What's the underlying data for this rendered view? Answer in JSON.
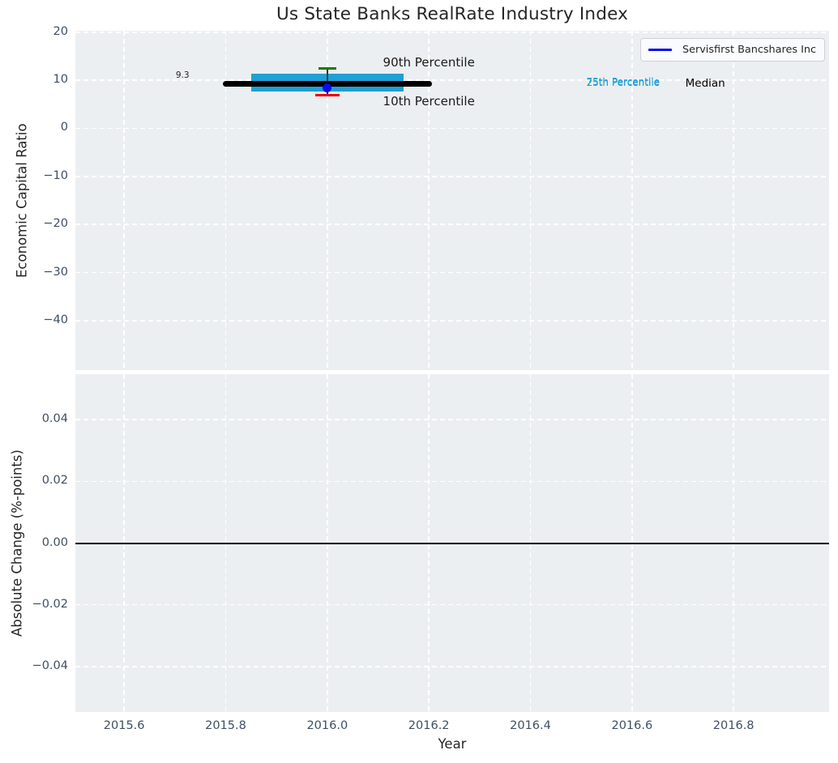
{
  "figure": {
    "title": "Us State Banks RealRate Industry Index",
    "xlabel": "Year",
    "legend": {
      "label": "Servisfirst Bancshares Inc",
      "line_color": "#0b0bf0"
    }
  },
  "colors": {
    "plot_background": "#eceff2",
    "grid": "#ffffff",
    "tick_label": "#3e4f63",
    "median_line": "#000000",
    "iqr_band": "#1fa0d6",
    "p90_cap": "#008000",
    "p10_cap": "#ee0000",
    "whisker": "#333333",
    "company_point": "#0b0bf0",
    "zero_line": "#000000"
  },
  "chart_data": [
    {
      "type": "line",
      "title": "Us State Banks RealRate Industry Index",
      "xlabel": "Year",
      "ylabel": "Economic Capital Ratio",
      "xlim": [
        2015.504,
        2016.988
      ],
      "ylim": [
        -50.3,
        20.3
      ],
      "grid": true,
      "xticks": [
        {
          "v": 2015.6,
          "label": "2015.6"
        },
        {
          "v": 2015.8,
          "label": "2015.8"
        },
        {
          "v": 2016.0,
          "label": "2016.0"
        },
        {
          "v": 2016.2,
          "label": "2016.2"
        },
        {
          "v": 2016.4,
          "label": "2016.4"
        },
        {
          "v": 2016.6,
          "label": "2016.6"
        },
        {
          "v": 2016.8,
          "label": "2016.8"
        }
      ],
      "yticks": [
        {
          "v": 20,
          "label": "20"
        },
        {
          "v": 10,
          "label": "10"
        },
        {
          "v": 0,
          "label": "0"
        },
        {
          "v": -10,
          "label": "−10"
        },
        {
          "v": -20,
          "label": "−20"
        },
        {
          "v": -30,
          "label": "−30"
        },
        {
          "v": -40,
          "label": "−40"
        }
      ],
      "series": [
        {
          "name": "Median",
          "color": "#000000",
          "x": [
            2015.8,
            2016.2
          ],
          "values": [
            9.3,
            9.3
          ],
          "value_label": "9.3"
        },
        {
          "name": "25th-75th Percentile band",
          "color": "#1fa0d6",
          "x": [
            2015.85,
            2016.15
          ],
          "p25": 7.7,
          "p75": 11.4
        },
        {
          "name": "Servisfirst Bancshares Inc",
          "color": "#0b0bf0",
          "x": [
            2016.0
          ],
          "values": [
            8.4
          ],
          "p90": 12.5,
          "p10": 6.9,
          "p90_cap_color": "#008000",
          "p10_cap_color": "#ee0000"
        }
      ],
      "annotations": [
        {
          "text": "90th Percentile",
          "x": 2016.2,
          "y": 13.7,
          "kind": "percentile-callout",
          "anchor": "mid",
          "color": "#1a1a1a"
        },
        {
          "text": "10th Percentile",
          "x": 2016.2,
          "y": 5.7,
          "kind": "percentile-callout",
          "anchor": "mid",
          "color": "#1a1a1a"
        },
        {
          "text": "9.3",
          "x": 2015.715,
          "y": 11.0,
          "kind": "value-label",
          "anchor": "mid",
          "color": "#1f1f1f"
        },
        {
          "text": "75th Percentile",
          "x": 2016.51,
          "y": 9.75,
          "kind": "quartile-label",
          "anchor": "start",
          "color": "#1fa0d6"
        },
        {
          "text": "25th Percentile",
          "x": 2016.51,
          "y": 9.45,
          "kind": "quartile-label",
          "anchor": "start",
          "color": "#1fa0d6"
        },
        {
          "text": "Median",
          "x": 2016.705,
          "y": 9.4,
          "kind": "median-label",
          "anchor": "start",
          "color": "#000000"
        }
      ],
      "legend": {
        "entries": [
          "Servisfirst Bancshares Inc"
        ],
        "position": "upper right"
      }
    },
    {
      "type": "line",
      "title": "",
      "xlabel": "Year",
      "ylabel": "Absolute Change (%-points)",
      "xlim": [
        2015.504,
        2016.988
      ],
      "ylim": [
        -0.0547,
        0.0547
      ],
      "grid": true,
      "xticks": [
        {
          "v": 2015.6,
          "label": "2015.6"
        },
        {
          "v": 2015.8,
          "label": "2015.8"
        },
        {
          "v": 2016.0,
          "label": "2016.0"
        },
        {
          "v": 2016.2,
          "label": "2016.2"
        },
        {
          "v": 2016.4,
          "label": "2016.4"
        },
        {
          "v": 2016.6,
          "label": "2016.6"
        },
        {
          "v": 2016.8,
          "label": "2016.8"
        }
      ],
      "yticks": [
        {
          "v": 0.04,
          "label": "0.04"
        },
        {
          "v": 0.02,
          "label": "0.02"
        },
        {
          "v": 0.0,
          "label": "0.00"
        },
        {
          "v": -0.02,
          "label": "−0.02"
        },
        {
          "v": -0.04,
          "label": "−0.04"
        }
      ],
      "zero_line": 0.0,
      "series": []
    }
  ]
}
